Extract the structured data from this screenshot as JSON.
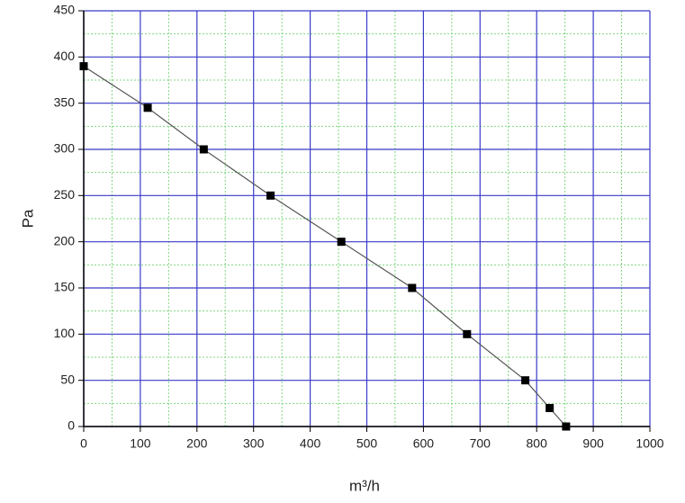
{
  "chart_data": {
    "type": "line",
    "x_label": "m³/h",
    "y_label": "Pa",
    "series": [
      {
        "name": "Pa",
        "color": "#555555",
        "marker": "square",
        "marker_color": "#000000",
        "x": [
          0,
          113,
          212,
          330,
          455,
          580,
          677,
          780,
          823,
          852
        ],
        "values": [
          390,
          345,
          300,
          250,
          200,
          150,
          100,
          50,
          20,
          0
        ]
      }
    ],
    "xlim": [
      0,
      1000
    ],
    "xticks": [
      0,
      100,
      200,
      300,
      400,
      500,
      600,
      700,
      800,
      900,
      1000
    ],
    "ylim": [
      0,
      450
    ],
    "yticks": [
      0,
      50,
      100,
      150,
      200,
      250,
      300,
      350,
      400,
      450
    ],
    "grid": true,
    "grid_color": "#3a3ac8",
    "minor_grid": true,
    "minor_grid_color": "#7fd77f"
  }
}
